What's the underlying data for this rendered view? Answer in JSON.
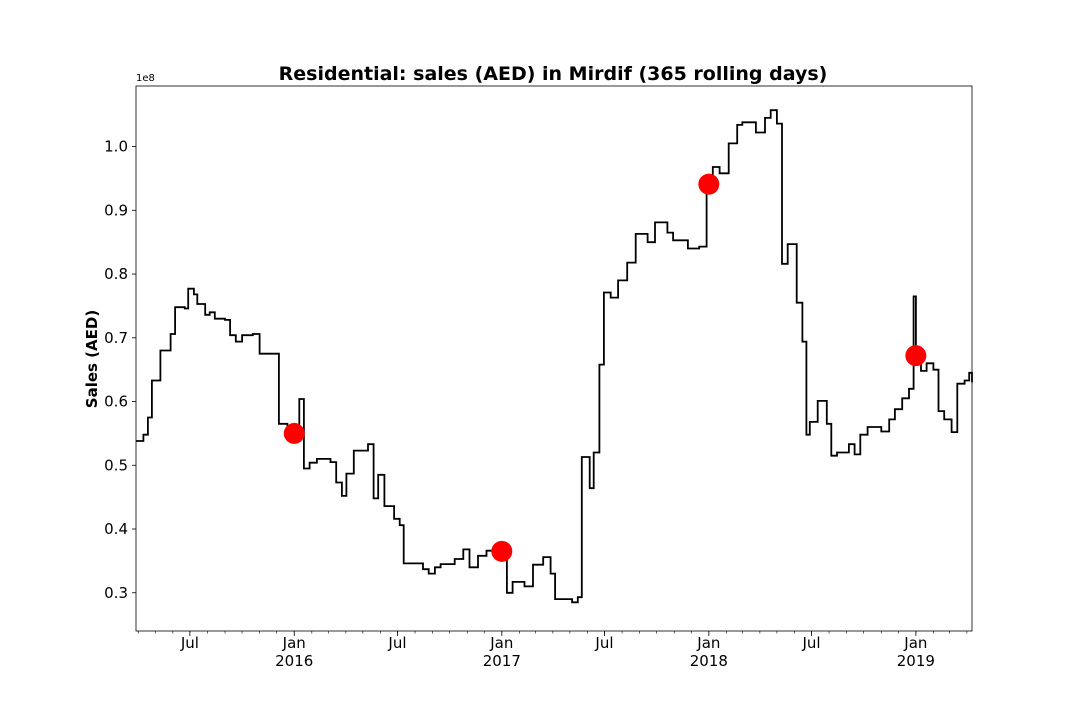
{
  "chart_data": {
    "type": "line",
    "title": "Residential: sales (AED) in Mirdif (365 rolling days)",
    "ylabel": "Sales (AED)",
    "xlabel": "",
    "y_scale_label": "1e8",
    "ylim": [
      24000000,
      109500000
    ],
    "xlim": [
      "2015-03-28",
      "2019-04-10"
    ],
    "grid": false,
    "y_ticks": [
      {
        "value": 30000000,
        "label": "0.3"
      },
      {
        "value": 40000000,
        "label": "0.4"
      },
      {
        "value": 50000000,
        "label": "0.5"
      },
      {
        "value": 60000000,
        "label": "0.6"
      },
      {
        "value": 70000000,
        "label": "0.7"
      },
      {
        "value": 80000000,
        "label": "0.8"
      },
      {
        "value": 90000000,
        "label": "0.9"
      },
      {
        "value": 100000000,
        "label": "1.0"
      }
    ],
    "x_ticks": [
      {
        "date": "2015-07-01",
        "label": "Jul",
        "sub": ""
      },
      {
        "date": "2016-01-01",
        "label": "Jan",
        "sub": "2016"
      },
      {
        "date": "2016-07-01",
        "label": "Jul",
        "sub": ""
      },
      {
        "date": "2017-01-01",
        "label": "Jan",
        "sub": "2017"
      },
      {
        "date": "2017-07-01",
        "label": "Jul",
        "sub": ""
      },
      {
        "date": "2018-01-01",
        "label": "Jan",
        "sub": "2018"
      },
      {
        "date": "2018-07-01",
        "label": "Jul",
        "sub": ""
      },
      {
        "date": "2019-01-01",
        "label": "Jan",
        "sub": "2019"
      }
    ],
    "series": [
      {
        "color": "#000000",
        "step": true,
        "points": [
          [
            "2015-03-28",
            53800000
          ],
          [
            "2015-04-10",
            54800000
          ],
          [
            "2015-04-18",
            57500000
          ],
          [
            "2015-04-25",
            63300000
          ],
          [
            "2015-05-10",
            68000000
          ],
          [
            "2015-05-28",
            70600000
          ],
          [
            "2015-06-05",
            74800000
          ],
          [
            "2015-06-22",
            74600000
          ],
          [
            "2015-06-28",
            77700000
          ],
          [
            "2015-07-08",
            76800000
          ],
          [
            "2015-07-14",
            75300000
          ],
          [
            "2015-07-28",
            73600000
          ],
          [
            "2015-08-05",
            74000000
          ],
          [
            "2015-08-14",
            73000000
          ],
          [
            "2015-09-01",
            72800000
          ],
          [
            "2015-09-10",
            70400000
          ],
          [
            "2015-09-20",
            69400000
          ],
          [
            "2015-10-01",
            70400000
          ],
          [
            "2015-10-20",
            70600000
          ],
          [
            "2015-11-01",
            67500000
          ],
          [
            "2015-12-05",
            56500000
          ],
          [
            "2015-12-20",
            55600000
          ],
          [
            "2016-01-01",
            55000000
          ],
          [
            "2016-01-10",
            60400000
          ],
          [
            "2016-01-18",
            49500000
          ],
          [
            "2016-01-28",
            50400000
          ],
          [
            "2016-02-10",
            51000000
          ],
          [
            "2016-03-05",
            50500000
          ],
          [
            "2016-03-15",
            47300000
          ],
          [
            "2016-03-25",
            45200000
          ],
          [
            "2016-04-02",
            48700000
          ],
          [
            "2016-04-15",
            52300000
          ],
          [
            "2016-05-10",
            53300000
          ],
          [
            "2016-05-20",
            44800000
          ],
          [
            "2016-05-28",
            48500000
          ],
          [
            "2016-06-08",
            43600000
          ],
          [
            "2016-06-25",
            41600000
          ],
          [
            "2016-07-05",
            40600000
          ],
          [
            "2016-07-12",
            34600000
          ],
          [
            "2016-08-15",
            33700000
          ],
          [
            "2016-08-25",
            33000000
          ],
          [
            "2016-09-05",
            34000000
          ],
          [
            "2016-09-15",
            34500000
          ],
          [
            "2016-10-10",
            35300000
          ],
          [
            "2016-10-25",
            36800000
          ],
          [
            "2016-11-05",
            34000000
          ],
          [
            "2016-11-20",
            35800000
          ],
          [
            "2016-12-05",
            36600000
          ],
          [
            "2016-12-30",
            36300000
          ],
          [
            "2017-01-10",
            30000000
          ],
          [
            "2017-01-20",
            31700000
          ],
          [
            "2017-02-10",
            31000000
          ],
          [
            "2017-02-25",
            34400000
          ],
          [
            "2017-03-15",
            35600000
          ],
          [
            "2017-03-28",
            33000000
          ],
          [
            "2017-04-05",
            29000000
          ],
          [
            "2017-05-05",
            28500000
          ],
          [
            "2017-05-15",
            29300000
          ],
          [
            "2017-05-22",
            51300000
          ],
          [
            "2017-06-05",
            46400000
          ],
          [
            "2017-06-12",
            52000000
          ],
          [
            "2017-06-22",
            65800000
          ],
          [
            "2017-06-30",
            77100000
          ],
          [
            "2017-07-12",
            76300000
          ],
          [
            "2017-07-25",
            79000000
          ],
          [
            "2017-08-10",
            81800000
          ],
          [
            "2017-08-25",
            86300000
          ],
          [
            "2017-09-15",
            85000000
          ],
          [
            "2017-09-28",
            88100000
          ],
          [
            "2017-10-20",
            86500000
          ],
          [
            "2017-10-30",
            85300000
          ],
          [
            "2017-11-25",
            84000000
          ],
          [
            "2017-12-15",
            84300000
          ],
          [
            "2017-12-28",
            94100000
          ],
          [
            "2018-01-08",
            96800000
          ],
          [
            "2018-01-20",
            95800000
          ],
          [
            "2018-02-05",
            100500000
          ],
          [
            "2018-02-20",
            103400000
          ],
          [
            "2018-03-01",
            103800000
          ],
          [
            "2018-03-25",
            102200000
          ],
          [
            "2018-04-10",
            104500000
          ],
          [
            "2018-04-20",
            105700000
          ],
          [
            "2018-05-01",
            103600000
          ],
          [
            "2018-05-10",
            81600000
          ],
          [
            "2018-05-20",
            84700000
          ],
          [
            "2018-06-05",
            75500000
          ],
          [
            "2018-06-15",
            69400000
          ],
          [
            "2018-06-22",
            54800000
          ],
          [
            "2018-06-28",
            56800000
          ],
          [
            "2018-07-12",
            60100000
          ],
          [
            "2018-07-28",
            56500000
          ],
          [
            "2018-08-05",
            51500000
          ],
          [
            "2018-08-15",
            52000000
          ],
          [
            "2018-09-05",
            53300000
          ],
          [
            "2018-09-15",
            51700000
          ],
          [
            "2018-09-25",
            54800000
          ],
          [
            "2018-10-08",
            56000000
          ],
          [
            "2018-11-01",
            55300000
          ],
          [
            "2018-11-15",
            57200000
          ],
          [
            "2018-11-25",
            58800000
          ],
          [
            "2018-12-08",
            60500000
          ],
          [
            "2018-12-20",
            62000000
          ],
          [
            "2018-12-28",
            76500000
          ],
          [
            "2019-01-01",
            67200000
          ],
          [
            "2019-01-10",
            64800000
          ],
          [
            "2019-01-20",
            66000000
          ],
          [
            "2019-02-01",
            65000000
          ],
          [
            "2019-02-10",
            58500000
          ],
          [
            "2019-02-20",
            57200000
          ],
          [
            "2019-03-05",
            55200000
          ],
          [
            "2019-03-15",
            62800000
          ],
          [
            "2019-03-28",
            63300000
          ],
          [
            "2019-04-05",
            64500000
          ],
          [
            "2019-04-10",
            63000000
          ]
        ]
      },
      {
        "type": "scatter",
        "color": "#ff0000",
        "points": [
          [
            "2016-01-01",
            55000000
          ],
          [
            "2017-01-01",
            36500000
          ],
          [
            "2018-01-01",
            94100000
          ],
          [
            "2019-01-01",
            67200000
          ]
        ]
      }
    ]
  }
}
